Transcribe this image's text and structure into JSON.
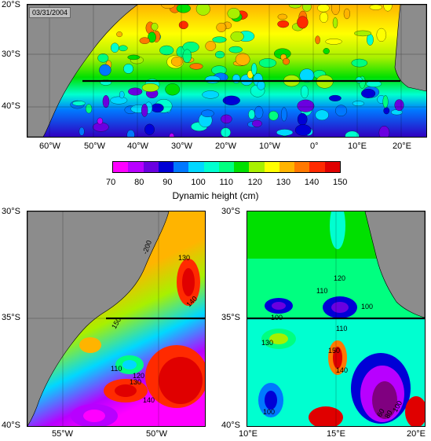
{
  "date": "03/31/2004",
  "colorbar": {
    "title": "Dynamic height (cm)",
    "labels": [
      "70",
      "80",
      "90",
      "100",
      "110",
      "120",
      "130",
      "140",
      "150"
    ],
    "colors": [
      "#ff00ff",
      "#b800ff",
      "#6a00e0",
      "#0000d6",
      "#0078ff",
      "#00d8ff",
      "#00ffd0",
      "#00ff80",
      "#00e000",
      "#a8f000",
      "#ffff00",
      "#ffb400",
      "#ff7800",
      "#ff2a00",
      "#e00000"
    ]
  },
  "top_map": {
    "lat_labels": [
      "20°S",
      "30°S",
      "40°S"
    ],
    "lon_labels": [
      "60°W",
      "50°W",
      "40°W",
      "30°W",
      "20°W",
      "10°W",
      "0°",
      "10°E",
      "20°E"
    ]
  },
  "left_map": {
    "lat_labels": [
      "30°S",
      "35°S",
      "40°S"
    ],
    "lon_labels": [
      "55°W",
      "50°W"
    ],
    "contour_labels": [
      "-200",
      "130",
      "140",
      "150",
      "110",
      "120",
      "130",
      "140"
    ]
  },
  "right_map": {
    "lat_labels": [
      "30°S",
      "35°S",
      "40°S"
    ],
    "lon_labels": [
      "10°E",
      "15°E",
      "20°E"
    ],
    "contour_labels": [
      "120",
      "110",
      "100",
      "100",
      "110",
      "130",
      "150",
      "140",
      "100",
      "60",
      "80",
      "100"
    ]
  }
}
